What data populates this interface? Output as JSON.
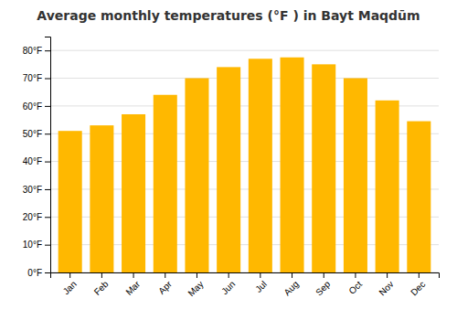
{
  "chart_data": {
    "type": "bar",
    "title": "Average monthly temperatures (°F ) in Bayt Maqdūm",
    "categories": [
      "Jan",
      "Feb",
      "Mar",
      "Apr",
      "May",
      "Jun",
      "Jul",
      "Aug",
      "Sep",
      "Oct",
      "Nov",
      "Dec"
    ],
    "values": [
      51,
      53,
      57,
      64,
      70,
      74,
      77,
      77.5,
      75,
      70,
      62,
      54.5
    ],
    "color": "#FFB800",
    "ylim": [
      0,
      85
    ],
    "yticks": [
      {
        "value": 0,
        "label": "0°F"
      },
      {
        "value": 10,
        "label": "10°F"
      },
      {
        "value": 20,
        "label": "20°F"
      },
      {
        "value": 30,
        "label": "30°F"
      },
      {
        "value": 40,
        "label": "40°F"
      },
      {
        "value": 50,
        "label": "50°F"
      },
      {
        "value": 60,
        "label": "60°F"
      },
      {
        "value": 70,
        "label": "70°F"
      },
      {
        "value": 80,
        "label": "80°F"
      }
    ],
    "grid": true
  }
}
